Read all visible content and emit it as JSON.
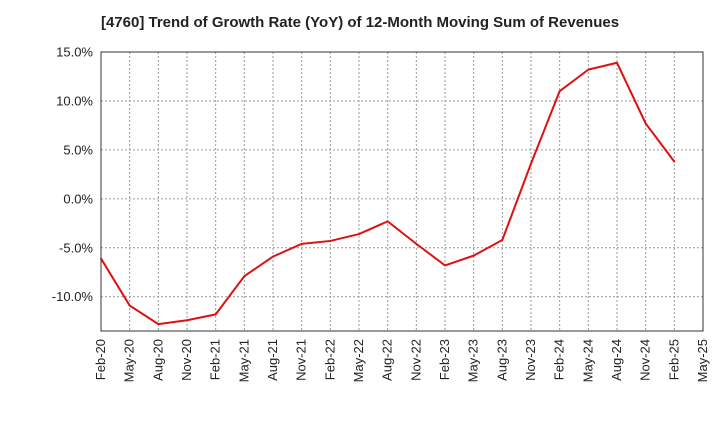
{
  "chart_data": {
    "type": "line",
    "title": "[4760]  Trend of Growth Rate (YoY) of 12-Month Moving Sum of Revenues",
    "xlabel": "",
    "ylabel": "",
    "x": [
      "Feb-20",
      "May-20",
      "Aug-20",
      "Nov-20",
      "Feb-21",
      "May-21",
      "Aug-21",
      "Nov-21",
      "Feb-22",
      "May-22",
      "Aug-22",
      "Nov-22",
      "Feb-23",
      "May-23",
      "Aug-23",
      "Nov-23",
      "Feb-24",
      "May-24",
      "Aug-24",
      "Nov-24",
      "Feb-25"
    ],
    "x_ticks": [
      "Feb-20",
      "May-20",
      "Aug-20",
      "Nov-20",
      "Feb-21",
      "May-21",
      "Aug-21",
      "Nov-21",
      "Feb-22",
      "May-22",
      "Aug-22",
      "Nov-22",
      "Feb-23",
      "May-23",
      "Aug-23",
      "Nov-23",
      "Feb-24",
      "May-24",
      "Aug-24",
      "Nov-24",
      "Feb-25",
      "May-25"
    ],
    "series": [
      {
        "values": [
          -6.1,
          -10.9,
          -12.8,
          -12.4,
          -11.8,
          -7.9,
          -5.9,
          -4.6,
          -4.3,
          -3.6,
          -2.3,
          -4.6,
          -6.8,
          -5.8,
          -4.2,
          3.6,
          11.0,
          13.2,
          13.9,
          7.7,
          3.8
        ]
      }
    ],
    "ylim": [
      -13.5,
      15.0
    ],
    "y_ticks": [
      15,
      10,
      5,
      0,
      -5,
      -10
    ],
    "y_tick_labels": [
      "15.0%",
      "10.0%",
      "5.0%",
      "0.0%",
      "-5.0%",
      "-10.0%"
    ],
    "grid": true,
    "line_color": "#dd1111",
    "grid_color": "#999999"
  }
}
